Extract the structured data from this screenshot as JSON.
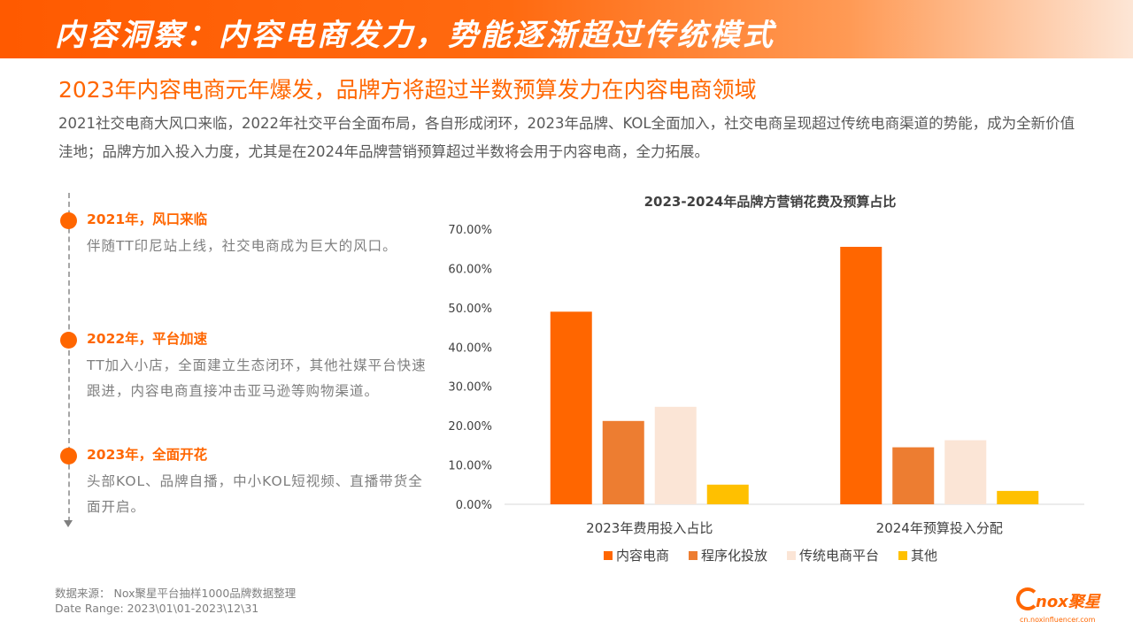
{
  "header": {
    "title": "内容洞察：内容电商发力，势能逐渐超过传统模式"
  },
  "headline": "2023年内容电商元年爆发，品牌方将超过半数预算发力在内容电商领域",
  "intro": "2021社交电商大风口来临，2022年社交平台全面布局，各自形成闭环，2023年品牌、KOL全面加入，社交电商呈现超过传统电商渠道的势能，成为全新价值洼地；品牌方加入投入力度，尤其是在2024年品牌营销预算超过半数将会用于内容电商，全力拓展。",
  "timeline": [
    {
      "head": "2021年，风口来临",
      "body": "伴随TT印尼站上线，社交电商成为巨大的风口。"
    },
    {
      "head": "2022年，平台加速",
      "body": "TT加入小店，全面建立生态闭环，其他社媒平台快速跟进，内容电商直接冲击亚马逊等购物渠道。"
    },
    {
      "head": "2023年，全面开花",
      "body": "头部KOL、品牌自播，中小KOL短视频、直播带货全面开启。"
    }
  ],
  "chart_data": {
    "type": "bar",
    "title": "2023-2024年品牌方营销花费及预算占比",
    "categories": [
      "2023年费用投入占比",
      "2024年预算投入分配"
    ],
    "series": [
      {
        "name": "内容电商",
        "values": [
          0.49,
          0.655
        ],
        "color": "#ff6600"
      },
      {
        "name": "程序化投放",
        "values": [
          0.212,
          0.145
        ],
        "color": "#ed7d31"
      },
      {
        "name": "传统电商平台",
        "values": [
          0.248,
          0.163
        ],
        "color": "#fbe5d6"
      },
      {
        "name": "其他",
        "values": [
          0.05,
          0.034
        ],
        "color": "#ffc000"
      }
    ],
    "yticks": [
      "0.00%",
      "10.00%",
      "20.00%",
      "30.00%",
      "40.00%",
      "50.00%",
      "60.00%",
      "70.00%"
    ],
    "ylim": [
      0,
      0.7
    ],
    "legend": "bottom"
  },
  "footer": {
    "source_line": "数据来源：   Nox聚星平台抽样1000品牌数据整理",
    "date_line": "Date Range:    2023\\01\\01-2023\\12\\31"
  },
  "logo": {
    "word": "nox聚星",
    "url": "cn.noxinfluencer.com"
  }
}
